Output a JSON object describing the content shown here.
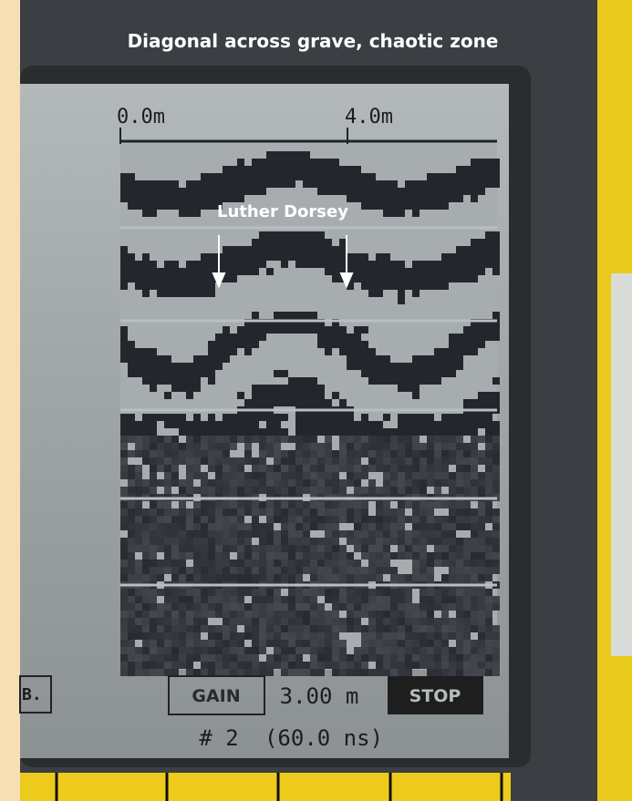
{
  "caption": "Diagonal across grave, chaotic zone",
  "screen": {
    "scale_start": "0.0m",
    "scale_mark": "4.0m",
    "annotation": "Luther Dorsey",
    "status": {
      "left_button": "B.",
      "gain_button": "GAIN",
      "distance": "3.00 m",
      "stop_button": "STOP",
      "file": "# 2",
      "time_window": "(60.0 ns)"
    }
  }
}
